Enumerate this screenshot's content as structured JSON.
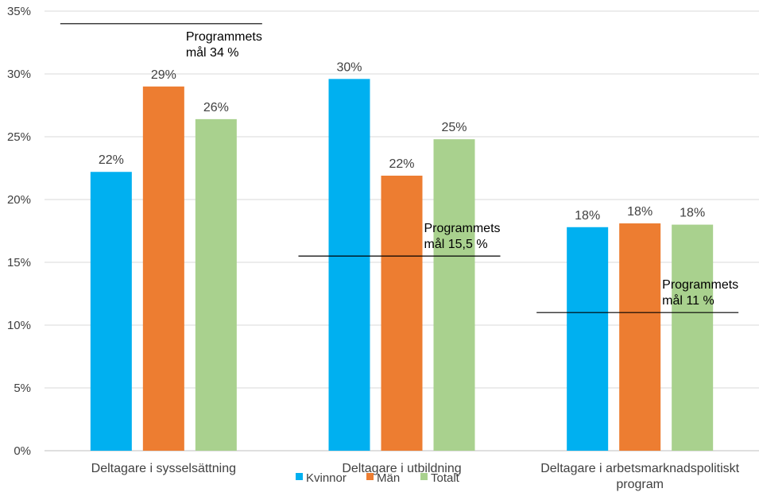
{
  "chart_data": {
    "type": "bar",
    "title": "",
    "xlabel": "",
    "ylabel": "",
    "ylim": [
      0,
      35
    ],
    "y_ticks": [
      {
        "value": 0,
        "label": "0%"
      },
      {
        "value": 5,
        "label": "5%"
      },
      {
        "value": 10,
        "label": "10%"
      },
      {
        "value": 15,
        "label": "15%"
      },
      {
        "value": 20,
        "label": "20%"
      },
      {
        "value": 25,
        "label": "25%"
      },
      {
        "value": 30,
        "label": "30%"
      },
      {
        "value": 35,
        "label": "35%"
      }
    ],
    "grid": true,
    "legend_position": "bottom",
    "categories": [
      [
        "Deltagare i sysselsättning"
      ],
      [
        "Deltagare i utbildning"
      ],
      [
        "Deltagare i arbetsmarknadspolitiskt",
        "program"
      ]
    ],
    "series": [
      {
        "name": "Kvinnor",
        "color": "#00B0F0",
        "values": [
          22.2,
          29.6,
          17.8
        ],
        "labels": [
          "22%",
          "30%",
          "18%"
        ]
      },
      {
        "name": "Män",
        "color": "#ED7D31",
        "values": [
          29.0,
          21.9,
          18.1
        ],
        "labels": [
          "29%",
          "22%",
          "18%"
        ]
      },
      {
        "name": "Totalt",
        "color": "#A9D18E",
        "values": [
          26.4,
          24.8,
          18.0
        ],
        "labels": [
          "26%",
          "25%",
          "18%"
        ]
      }
    ],
    "goals": [
      {
        "category_index": 0,
        "value": 34,
        "lines": [
          "Programmets",
          "mål 34 %"
        ]
      },
      {
        "category_index": 1,
        "value": 15.5,
        "lines": [
          "Programmets",
          "mål 15,5 %"
        ]
      },
      {
        "category_index": 2,
        "value": 11,
        "lines": [
          "Programmets",
          "mål 11 %"
        ]
      }
    ]
  }
}
